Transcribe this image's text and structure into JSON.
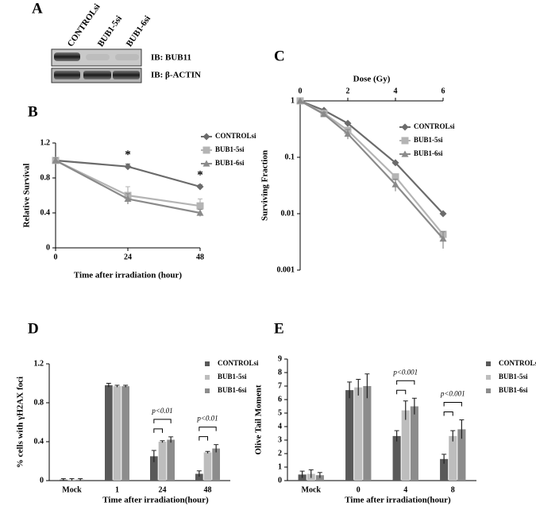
{
  "blot": {
    "panel": "A",
    "lanes": [
      "CONTROLsi",
      "BUB1-5si",
      "BUB1-6si"
    ],
    "rows": [
      "IB: BUB11",
      "IB: β-ACTIN"
    ]
  },
  "chart_data": [
    {
      "type": "line",
      "panel": "B",
      "ylabel": "Relative Survival",
      "xlabel": "Time after irradiation (hour)",
      "x": [
        0,
        24,
        48
      ],
      "xlim": [
        0,
        48
      ],
      "xticks": [
        0,
        24,
        48
      ],
      "ylim": [
        0,
        1.2
      ],
      "yticks": [
        0,
        0.4,
        0.8,
        1.2
      ],
      "xaxis": "bottom",
      "annotations": [
        "*",
        "*"
      ],
      "series": [
        {
          "name": "CONTROLsi",
          "color": "#6b6b6b",
          "marker": "diamond",
          "values": [
            1,
            0.93,
            0.7
          ],
          "errors": [
            0.02,
            0.03,
            0.02
          ]
        },
        {
          "name": "BUB1-5si",
          "color": "#b4b4b4",
          "marker": "square",
          "values": [
            1,
            0.6,
            0.48
          ],
          "errors": [
            0.03,
            0.1,
            0.08
          ]
        },
        {
          "name": "BUB1-6si",
          "color": "#8a8a8a",
          "marker": "triangle",
          "values": [
            1,
            0.56,
            0.4
          ],
          "errors": [
            0.03,
            0.06,
            0.04
          ]
        }
      ]
    },
    {
      "type": "line",
      "panel": "C",
      "ylabel": "Surviving Fraction",
      "xlabel": "Dose (Gy)",
      "x": [
        0,
        1,
        2,
        4,
        6
      ],
      "xlim": [
        0,
        6
      ],
      "xticks": [
        0,
        2,
        4,
        6
      ],
      "ylim": [
        0.001,
        1
      ],
      "yticks": [
        0.001,
        0.01,
        0.1,
        1
      ],
      "ylog": true,
      "xaxis": "top",
      "annotations": [],
      "series": [
        {
          "name": "CONTROLsi",
          "color": "#6b6b6b",
          "marker": "diamond",
          "values": [
            1,
            0.68,
            0.4,
            0.08,
            0.01
          ]
        },
        {
          "name": "BUB1-5si",
          "color": "#b4b4b4",
          "marker": "square",
          "values": [
            1,
            0.6,
            0.3,
            0.045,
            0.0043
          ]
        },
        {
          "name": "BUB1-6si",
          "color": "#8a8a8a",
          "marker": "triangle",
          "values": [
            1,
            0.58,
            0.26,
            0.033,
            0.0036
          ],
          "errors": [
            0,
            0.05,
            0.05,
            0.008,
            0.0012
          ]
        }
      ]
    },
    {
      "type": "bar",
      "panel": "D",
      "ylabel": "% cells with γH2AX foci",
      "xlabel": "Time after irradiation(hour)",
      "categories": [
        "Mock",
        "1",
        "24",
        "48"
      ],
      "ylim": [
        0,
        1.2
      ],
      "yticks": [
        0,
        0.4,
        0.8,
        1.2
      ],
      "annotations": [
        "p<0.01",
        "p<0.01"
      ],
      "series": [
        {
          "name": "CONTROLsi",
          "color": "#595959",
          "values": [
            0.01,
            0.98,
            0.25,
            0.07
          ],
          "errors": [
            0.01,
            0.02,
            0.06,
            0.03
          ]
        },
        {
          "name": "BUB1-5si",
          "color": "#bdbdbd",
          "values": [
            0.01,
            0.97,
            0.4,
            0.29
          ],
          "errors": [
            0.01,
            0.01,
            0.01,
            0.01
          ]
        },
        {
          "name": "BUB1-6si",
          "color": "#8c8c8c",
          "values": [
            0.01,
            0.97,
            0.42,
            0.33
          ],
          "errors": [
            0.01,
            0.01,
            0.03,
            0.04
          ]
        }
      ]
    },
    {
      "type": "bar",
      "panel": "E",
      "ylabel": "Olive Tail Moment",
      "xlabel": "Time after irradiation(hour)",
      "categories": [
        "Mock",
        "0",
        "4",
        "8"
      ],
      "ylim": [
        0,
        9
      ],
      "yticks": [
        0,
        1,
        2,
        3,
        4,
        5,
        6,
        7,
        8,
        9
      ],
      "annotations": [
        "p<0.001",
        "p<0.001"
      ],
      "series": [
        {
          "name": "CONTROLsi",
          "color": "#595959",
          "values": [
            0.45,
            6.7,
            3.3,
            1.6
          ],
          "errors": [
            0.25,
            0.6,
            0.4,
            0.35
          ]
        },
        {
          "name": "BUB1-5si",
          "color": "#bdbdbd",
          "values": [
            0.5,
            6.9,
            5.2,
            3.3
          ],
          "errors": [
            0.3,
            0.6,
            0.7,
            0.4
          ]
        },
        {
          "name": "BUB1-6si",
          "color": "#8c8c8c",
          "values": [
            0.4,
            7.0,
            5.5,
            3.8
          ],
          "errors": [
            0.2,
            0.9,
            0.6,
            0.7
          ]
        }
      ]
    }
  ]
}
